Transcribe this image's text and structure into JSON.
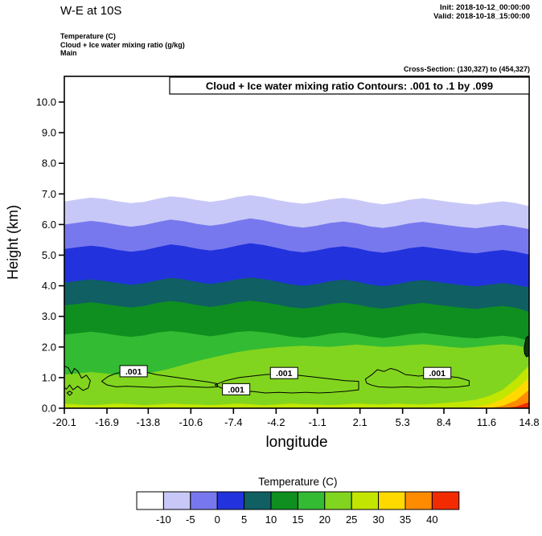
{
  "header": {
    "title": "W-E at 10S",
    "init": "Init: 2018-10-12_00:00:00",
    "valid": "Valid: 2018-10-18_15:00:00",
    "field_lines": [
      "Temperature  (C)",
      "Cloud + Ice water mixing ratio  (g/kg)",
      "Main"
    ],
    "cross_section": "Cross-Section: (130,327) to (454,327)"
  },
  "chart_data": {
    "type": "filled-contour-cross-section",
    "inner_title": "Cloud + Ice water mixing ratio Contours: .001 to .1 by .099",
    "xlabel": "longitude",
    "ylabel": "Height (km)",
    "xlim": [
      -20.1,
      14.8
    ],
    "ylim": [
      0,
      10.84
    ],
    "x_tick_labels": [
      "-20.1",
      "-16.9",
      "-13.8",
      "-10.6",
      "-7.4",
      "-4.2",
      "-1.1",
      "2.1",
      "5.3",
      "8.4",
      "11.6",
      "14.8"
    ],
    "y_tick_labels": [
      "0.0",
      "1.0",
      "2.0",
      "3.0",
      "4.0",
      "5.0",
      "6.0",
      "7.0",
      "8.0",
      "9.0",
      "10.0"
    ],
    "temperature_bands": {
      "levels": [
        -10,
        -5,
        0,
        5,
        10,
        15,
        20,
        25,
        30,
        35,
        40
      ],
      "colors": [
        "#ffffff",
        "#c8c8f8",
        "#7878ee",
        "#2233dd",
        "#0f5f63",
        "#0f8f1f",
        "#33bb33",
        "#82d51e",
        "#c3e600",
        "#ffd900",
        "#ff8c00",
        "#f22b00"
      ],
      "x": [
        -20.1,
        -19.1,
        -18.11,
        -17.11,
        -16.11,
        -15.11,
        -14.12,
        -13.12,
        -12.12,
        -11.13,
        -10.13,
        -9.13,
        -8.13,
        -7.14,
        -6.14,
        -5.14,
        -4.14,
        -3.15,
        -2.15,
        -1.15,
        -0.16,
        0.84,
        1.84,
        2.84,
        3.83,
        4.83,
        5.83,
        6.82,
        7.82,
        8.82,
        9.81,
        10.81,
        11.81,
        12.81,
        13.8,
        14.8
      ],
      "boundaries": [
        [
          6.75,
          6.82,
          6.88,
          6.84,
          6.76,
          6.7,
          6.74,
          6.84,
          6.92,
          6.88,
          6.8,
          6.74,
          6.8,
          6.9,
          6.96,
          6.9,
          6.8,
          6.73,
          6.68,
          6.74,
          6.82,
          6.87,
          6.81,
          6.72,
          6.66,
          6.72,
          6.81,
          6.86,
          6.8,
          6.74,
          6.69,
          6.65,
          6.71,
          6.76,
          6.7,
          6.6
        ],
        [
          6.0,
          6.06,
          6.12,
          6.07,
          5.99,
          5.93,
          5.98,
          6.08,
          6.16,
          6.11,
          6.02,
          5.96,
          6.02,
          6.12,
          6.2,
          6.14,
          6.04,
          5.95,
          5.9,
          5.96,
          6.05,
          6.1,
          6.04,
          5.94,
          5.89,
          5.95,
          6.04,
          6.09,
          6.03,
          5.97,
          5.92,
          5.88,
          5.94,
          5.99,
          5.93,
          5.85
        ],
        [
          5.2,
          5.26,
          5.31,
          5.26,
          5.17,
          5.11,
          5.16,
          5.26,
          5.35,
          5.3,
          5.21,
          5.15,
          5.21,
          5.31,
          5.39,
          5.33,
          5.24,
          5.14,
          5.09,
          5.15,
          5.24,
          5.29,
          5.23,
          5.13,
          5.08,
          5.14,
          5.23,
          5.28,
          5.22,
          5.16,
          5.1,
          5.06,
          5.12,
          5.17,
          5.11,
          5.02
        ],
        [
          4.1,
          4.16,
          4.21,
          4.16,
          4.09,
          4.03,
          4.08,
          4.18,
          4.26,
          4.21,
          4.12,
          4.06,
          4.12,
          4.21,
          4.27,
          4.22,
          4.14,
          4.05,
          4.0,
          4.06,
          4.15,
          4.2,
          4.14,
          4.04,
          3.99,
          4.05,
          4.14,
          4.19,
          4.13,
          4.07,
          4.02,
          3.98,
          4.04,
          4.09,
          4.03,
          3.95
        ],
        [
          3.36,
          3.41,
          3.46,
          3.41,
          3.34,
          3.29,
          3.34,
          3.44,
          3.5,
          3.45,
          3.37,
          3.31,
          3.37,
          3.46,
          3.51,
          3.46,
          3.39,
          3.3,
          3.26,
          3.31,
          3.4,
          3.45,
          3.39,
          3.3,
          3.25,
          3.31,
          3.39,
          3.44,
          3.38,
          3.33,
          3.28,
          3.24,
          3.3,
          3.34,
          3.28,
          3.15
        ],
        [
          2.4,
          2.45,
          2.5,
          2.45,
          2.38,
          2.33,
          2.38,
          2.47,
          2.52,
          2.48,
          2.41,
          2.35,
          2.41,
          2.49,
          2.52,
          2.48,
          2.42,
          2.34,
          2.3,
          2.35,
          2.43,
          2.47,
          2.42,
          2.34,
          2.29,
          2.35,
          2.42,
          2.46,
          2.41,
          2.36,
          2.31,
          2.28,
          2.33,
          2.37,
          2.32,
          2.2
        ],
        [
          1.1,
          1.14,
          1.18,
          1.14,
          1.09,
          1.08,
          1.12,
          1.2,
          1.3,
          1.42,
          1.54,
          1.64,
          1.74,
          1.83,
          1.9,
          1.95,
          1.99,
          2.02,
          2.04,
          2.02,
          2.0,
          2.04,
          2.08,
          2.04,
          2.0,
          2.02,
          2.06,
          2.09,
          2.05,
          2.0,
          1.97,
          2.0,
          2.05,
          2.09,
          2.06,
          1.95
        ],
        [
          0.15,
          0.12,
          0.1,
          0.12,
          0.15,
          0.13,
          0.1,
          0.12,
          0.15,
          0.13,
          0.12,
          0.1,
          0.12,
          0.15,
          0.13,
          0.1,
          0.12,
          0.15,
          0.13,
          0.12,
          0.1,
          0.12,
          0.15,
          0.13,
          0.12,
          0.15,
          0.13,
          0.12,
          0.15,
          0.18,
          0.22,
          0.28,
          0.4,
          0.6,
          0.95,
          1.4
        ],
        [
          0,
          0,
          0,
          0,
          0,
          0,
          0,
          0,
          0,
          0,
          0,
          0,
          0,
          0,
          0,
          0,
          0,
          0,
          0,
          0,
          0,
          0,
          0,
          0,
          0,
          0,
          0,
          0,
          0,
          0,
          0,
          0.05,
          0.12,
          0.3,
          0.6,
          1.0
        ],
        [
          0,
          0,
          0,
          0,
          0,
          0,
          0,
          0,
          0,
          0,
          0,
          0,
          0,
          0,
          0,
          0,
          0,
          0,
          0,
          0,
          0,
          0,
          0,
          0,
          0,
          0,
          0,
          0,
          0,
          0,
          0,
          0,
          0,
          0.08,
          0.25,
          0.6
        ],
        [
          0,
          0,
          0,
          0,
          0,
          0,
          0,
          0,
          0,
          0,
          0,
          0,
          0,
          0,
          0,
          0,
          0,
          0,
          0,
          0,
          0,
          0,
          0,
          0,
          0,
          0,
          0,
          0,
          0,
          0,
          0,
          0,
          0,
          0,
          0.05,
          0.2
        ]
      ]
    },
    "cloud_contours": {
      "level_range": ".001 to .1 by .099",
      "color": "#000000",
      "loops": [
        {
          "closed": false,
          "points": [
            [
              -20.1,
              1.38
            ],
            [
              -19.8,
              1.32
            ],
            [
              -19.55,
              1.12
            ],
            [
              -19.35,
              1.3
            ],
            [
              -19.1,
              1.22
            ],
            [
              -18.8,
              0.98
            ],
            [
              -18.45,
              1.08
            ],
            [
              -18.15,
              0.9
            ],
            [
              -18.3,
              0.66
            ],
            [
              -18.7,
              0.58
            ],
            [
              -19.1,
              0.72
            ],
            [
              -19.45,
              0.6
            ],
            [
              -19.7,
              0.76
            ],
            [
              -19.95,
              0.62
            ],
            [
              -20.1,
              0.68
            ]
          ]
        },
        {
          "closed": true,
          "points": [
            [
              -17.3,
              0.88
            ],
            [
              -16.8,
              1.04
            ],
            [
              -16.2,
              1.14
            ],
            [
              -15.5,
              1.2
            ],
            [
              -14.8,
              1.22
            ],
            [
              -14.0,
              1.18
            ],
            [
              -13.2,
              1.1
            ],
            [
              -12.4,
              1.05
            ],
            [
              -11.6,
              1.0
            ],
            [
              -10.8,
              0.95
            ],
            [
              -10.0,
              0.9
            ],
            [
              -9.2,
              0.85
            ],
            [
              -8.6,
              0.8
            ],
            [
              -8.6,
              0.7
            ],
            [
              -9.4,
              0.68
            ],
            [
              -10.4,
              0.7
            ],
            [
              -11.4,
              0.72
            ],
            [
              -12.4,
              0.7
            ],
            [
              -13.4,
              0.68
            ],
            [
              -14.4,
              0.7
            ],
            [
              -15.4,
              0.72
            ],
            [
              -16.2,
              0.7
            ],
            [
              -16.9,
              0.76
            ]
          ]
        },
        {
          "closed": true,
          "points": [
            [
              -8.8,
              0.76
            ],
            [
              -8.0,
              0.9
            ],
            [
              -7.0,
              1.0
            ],
            [
              -6.0,
              1.05
            ],
            [
              -5.0,
              1.1
            ],
            [
              -4.0,
              1.12
            ],
            [
              -3.0,
              1.1
            ],
            [
              -2.0,
              1.05
            ],
            [
              -1.0,
              1.0
            ],
            [
              0.0,
              0.95
            ],
            [
              1.0,
              0.9
            ],
            [
              2.0,
              0.88
            ],
            [
              2.0,
              0.6
            ],
            [
              1.0,
              0.55
            ],
            [
              0.0,
              0.52
            ],
            [
              -1.0,
              0.5
            ],
            [
              -2.0,
              0.52
            ],
            [
              -3.0,
              0.5
            ],
            [
              -4.0,
              0.52
            ],
            [
              -5.0,
              0.5
            ],
            [
              -6.0,
              0.55
            ],
            [
              -7.0,
              0.52
            ],
            [
              -8.0,
              0.6
            ]
          ]
        },
        {
          "closed": true,
          "points": [
            [
              2.5,
              0.95
            ],
            [
              3.0,
              1.1
            ],
            [
              3.4,
              1.26
            ],
            [
              3.9,
              1.2
            ],
            [
              4.4,
              1.3
            ],
            [
              4.9,
              1.24
            ],
            [
              5.5,
              1.1
            ],
            [
              6.5,
              1.05
            ],
            [
              7.5,
              1.1
            ],
            [
              8.5,
              1.05
            ],
            [
              9.5,
              1.0
            ],
            [
              10.3,
              0.9
            ],
            [
              10.3,
              0.74
            ],
            [
              9.5,
              0.7
            ],
            [
              8.5,
              0.68
            ],
            [
              7.5,
              0.7
            ],
            [
              6.5,
              0.68
            ],
            [
              5.5,
              0.7
            ],
            [
              4.5,
              0.68
            ],
            [
              3.5,
              0.7
            ],
            [
              3.0,
              0.75
            ],
            [
              2.6,
              0.82
            ]
          ]
        },
        {
          "closed": true,
          "points": [
            [
              -19.9,
              0.5
            ],
            [
              -19.7,
              0.56
            ],
            [
              -19.5,
              0.5
            ],
            [
              -19.7,
              0.42
            ]
          ]
        },
        {
          "closed": true,
          "fill": "#0a3a0a",
          "points": [
            [
              14.42,
              1.95
            ],
            [
              14.5,
              2.15
            ],
            [
              14.58,
              2.3
            ],
            [
              14.8,
              2.38
            ],
            [
              14.8,
              1.72
            ],
            [
              14.6,
              1.68
            ],
            [
              14.46,
              1.78
            ]
          ]
        }
      ],
      "labels": [
        {
          "text": ".001",
          "x": -14.9,
          "h": 1.21
        },
        {
          "text": ".001",
          "x": -7.2,
          "h": 0.62
        },
        {
          "text": ".001",
          "x": -3.6,
          "h": 1.15
        },
        {
          "text": ".001",
          "x": 7.9,
          "h": 1.15
        }
      ]
    },
    "colorbar": {
      "title": "Temperature  (C)",
      "tick_labels": [
        "-10",
        "-5",
        "0",
        "5",
        "10",
        "15",
        "20",
        "25",
        "30",
        "35",
        "40"
      ],
      "colors": [
        "#ffffff",
        "#c8c8f8",
        "#7878ee",
        "#2233dd",
        "#0f5f63",
        "#0f8f1f",
        "#33bb33",
        "#82d51e",
        "#c3e600",
        "#ffd900",
        "#ff8c00",
        "#f22b00"
      ]
    }
  }
}
